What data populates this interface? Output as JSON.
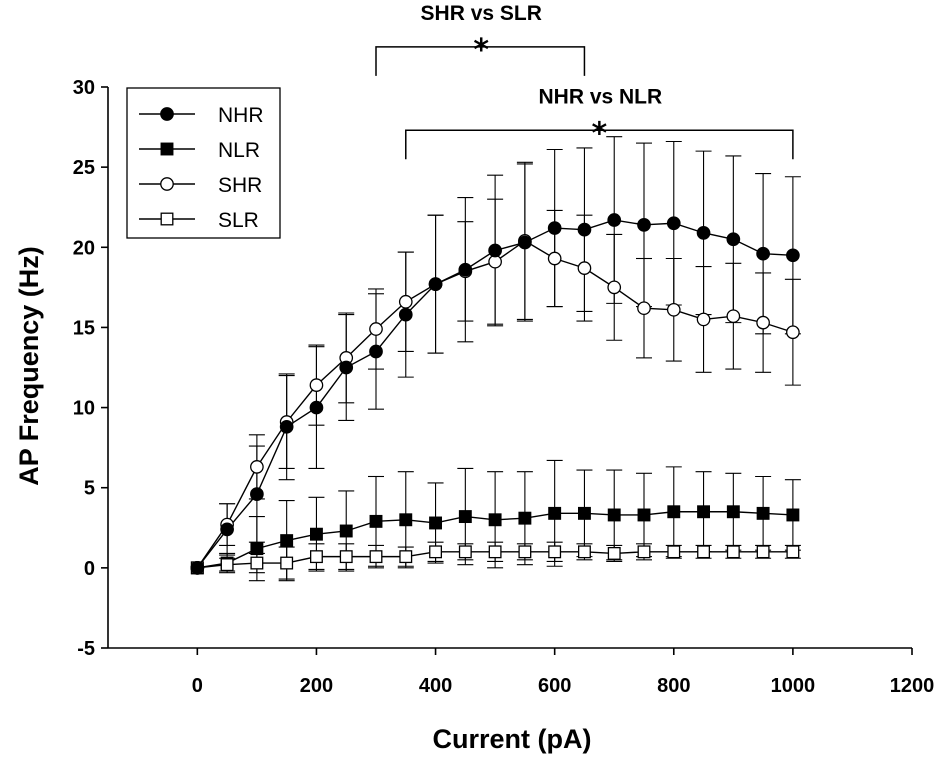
{
  "chart_data": {
    "type": "line",
    "xlabel": "Current (pA)",
    "ylabel": "AP Frequency (Hz)",
    "xlim": [
      -150,
      1200
    ],
    "ylim": [
      -5,
      30
    ],
    "xticks": [
      0,
      200,
      400,
      600,
      800,
      1000,
      1200
    ],
    "yticks": [
      -5,
      0,
      5,
      10,
      15,
      20,
      25,
      30
    ],
    "x": [
      0,
      50,
      100,
      150,
      200,
      250,
      300,
      350,
      400,
      450,
      500,
      550,
      600,
      650,
      700,
      750,
      800,
      850,
      900,
      950,
      1000
    ],
    "legend_position": "top-left",
    "series": [
      {
        "name": "NHR",
        "marker": "filled-circle",
        "values": [
          0,
          2.4,
          4.6,
          8.8,
          10.0,
          12.5,
          13.5,
          15.8,
          17.7,
          18.6,
          19.8,
          20.3,
          21.2,
          21.1,
          21.7,
          21.4,
          21.5,
          20.9,
          20.5,
          19.6,
          19.5
        ],
        "errors": [
          0,
          1.6,
          3.0,
          3.3,
          3.8,
          3.3,
          3.6,
          3.9,
          4.3,
          4.5,
          4.7,
          4.9,
          4.9,
          5.1,
          5.2,
          5.1,
          5.1,
          5.1,
          5.2,
          5.0,
          4.9
        ]
      },
      {
        "name": "NLR",
        "marker": "filled-square",
        "values": [
          0,
          0.3,
          1.2,
          1.7,
          2.1,
          2.3,
          2.9,
          3.0,
          2.8,
          3.2,
          3.0,
          3.1,
          3.4,
          3.4,
          3.3,
          3.3,
          3.5,
          3.5,
          3.5,
          3.4,
          3.3
        ],
        "errors": [
          0,
          0.6,
          2.0,
          2.5,
          2.3,
          2.5,
          2.8,
          3.0,
          2.5,
          3.0,
          3.0,
          2.9,
          3.3,
          2.7,
          2.8,
          2.6,
          2.8,
          2.5,
          2.4,
          2.3,
          2.2
        ]
      },
      {
        "name": "SHR",
        "marker": "open-circle",
        "values": [
          0,
          2.7,
          6.3,
          9.1,
          11.4,
          13.1,
          14.9,
          16.6,
          17.7,
          18.5,
          19.1,
          20.4,
          19.3,
          18.7,
          17.5,
          16.2,
          16.1,
          15.5,
          15.7,
          15.3,
          14.7
        ],
        "errors": [
          0,
          1.3,
          2.0,
          2.9,
          2.5,
          2.8,
          2.5,
          3.1,
          4.3,
          3.1,
          3.9,
          4.9,
          3.0,
          3.3,
          3.3,
          3.1,
          3.2,
          3.3,
          3.3,
          3.1,
          3.3
        ]
      },
      {
        "name": "SLR",
        "marker": "open-square",
        "values": [
          0,
          0.2,
          0.3,
          0.3,
          0.7,
          0.7,
          0.7,
          0.7,
          1.0,
          1.0,
          1.0,
          1.0,
          1.0,
          1.0,
          0.9,
          1.0,
          1.0,
          1.0,
          1.0,
          1.0,
          1.0
        ],
        "errors": [
          0,
          0.4,
          0.6,
          1.0,
          0.8,
          0.8,
          0.7,
          0.6,
          0.6,
          0.5,
          0.6,
          0.5,
          0.6,
          0.5,
          0.5,
          0.5,
          0.4,
          0.4,
          0.4,
          0.4,
          0.4
        ]
      }
    ],
    "annotations": [
      {
        "text": "SHR vs SLR",
        "marker": "*",
        "x_start": 300,
        "x_end": 650,
        "bracket_y": 32.5
      },
      {
        "text": "NHR vs NLR",
        "marker": "*",
        "x_start": 350,
        "x_end": 1000,
        "bracket_y": 27.3
      }
    ]
  }
}
